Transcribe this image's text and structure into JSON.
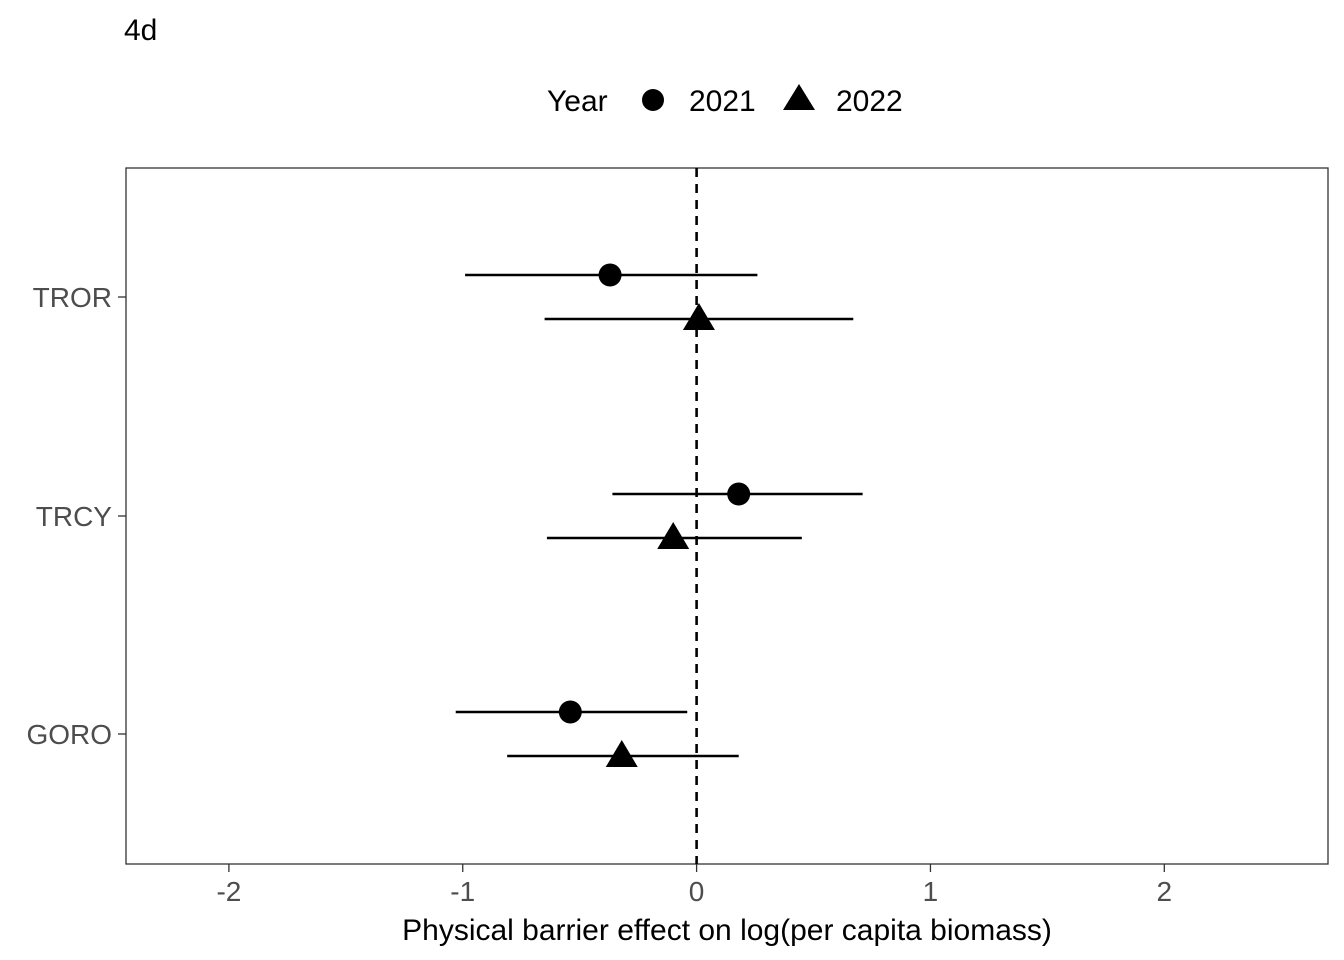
{
  "panel_label": "4d",
  "chart_data": {
    "type": "scatter",
    "subtype": "forest-plot",
    "title": "",
    "xlabel": "Physical barrier effect on log(per capita biomass)",
    "ylabel": "",
    "xlim": [
      -2.44,
      2.7
    ],
    "x_ticks": [
      -2,
      -1,
      0,
      1,
      2
    ],
    "x_tick_labels": [
      "-2",
      "-1",
      "0",
      "1",
      "2"
    ],
    "categories": [
      "TROR",
      "TRCY",
      "GORO"
    ],
    "reference_line": {
      "x": 0,
      "style": "dashed"
    },
    "grid": false,
    "legend": {
      "title": "Year",
      "placement": "top",
      "entries": [
        {
          "label": "2021",
          "shape": "circle"
        },
        {
          "label": "2022",
          "shape": "triangle"
        }
      ]
    },
    "series": [
      {
        "name": "2021",
        "shape": "circle",
        "points": [
          {
            "category": "TROR",
            "estimate": -0.37,
            "lower": -0.99,
            "upper": 0.26
          },
          {
            "category": "TRCY",
            "estimate": 0.18,
            "lower": -0.36,
            "upper": 0.71
          },
          {
            "category": "GORO",
            "estimate": -0.54,
            "lower": -1.03,
            "upper": -0.04
          }
        ]
      },
      {
        "name": "2022",
        "shape": "triangle",
        "points": [
          {
            "category": "TROR",
            "estimate": 0.01,
            "lower": -0.65,
            "upper": 0.67
          },
          {
            "category": "TRCY",
            "estimate": -0.1,
            "lower": -0.64,
            "upper": 0.45
          },
          {
            "category": "GORO",
            "estimate": -0.32,
            "lower": -0.81,
            "upper": 0.18
          }
        ]
      }
    ],
    "colors": {
      "marks": "#000000",
      "axis_text": "#4d4d4d",
      "panel_border": "#333333"
    }
  }
}
